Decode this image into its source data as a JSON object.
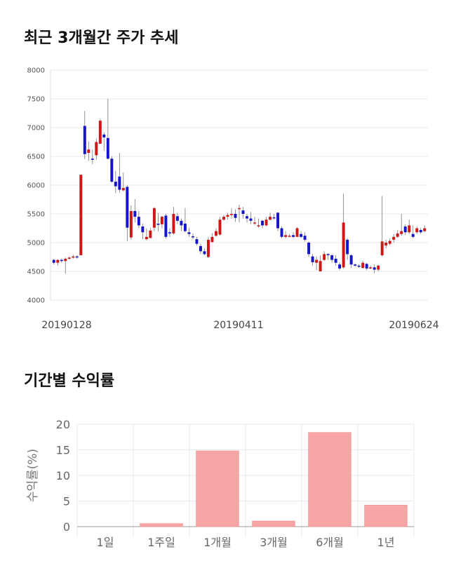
{
  "section_titles": {
    "price": "최근 3개월간 주가 추세",
    "returns": "기간별 수익률"
  },
  "colors": {
    "up": "#d01717",
    "down": "#1515c8",
    "bar": "#f8a5a5",
    "grid": "#e8e8ee"
  },
  "chart_data": [
    {
      "type": "candlestick",
      "ylim": [
        4000,
        8000
      ],
      "yticks": [
        "4000",
        "4500",
        "5000",
        "5500",
        "6000",
        "6500",
        "7000",
        "7500",
        "8000"
      ],
      "xticks": [
        "20190128",
        "20190411",
        "20190624"
      ],
      "grid": true,
      "candles": [
        [
          4700,
          4650,
          4720,
          4620
        ],
        [
          4650,
          4700,
          4710,
          4600
        ],
        [
          4700,
          4680,
          4720,
          4650
        ],
        [
          4680,
          4720,
          4740,
          4460
        ],
        [
          4720,
          4740,
          4760,
          4700
        ],
        [
          4740,
          4760,
          4790,
          4720
        ],
        [
          4760,
          4750,
          4780,
          4720
        ],
        [
          4780,
          6180,
          6180,
          4780
        ],
        [
          7030,
          6540,
          7290,
          6450
        ],
        [
          6560,
          6620,
          6760,
          6420
        ],
        [
          6460,
          6440,
          6620,
          6360
        ],
        [
          6520,
          6750,
          6810,
          6440
        ],
        [
          6720,
          7120,
          7150,
          6720
        ],
        [
          6880,
          6830,
          6920,
          6600
        ],
        [
          6820,
          6460,
          7500,
          6440
        ],
        [
          6460,
          6060,
          6500,
          6040
        ],
        [
          6060,
          5980,
          6250,
          5860
        ],
        [
          6150,
          5920,
          6560,
          5870
        ],
        [
          5910,
          5950,
          6220,
          5890
        ],
        [
          5970,
          5260,
          6000,
          5020
        ],
        [
          5090,
          5550,
          5650,
          5050
        ],
        [
          5550,
          5450,
          5760,
          5350
        ],
        [
          5450,
          5300,
          5550,
          5250
        ],
        [
          5280,
          5180,
          5330,
          5060
        ],
        [
          5060,
          5100,
          5250,
          5040
        ],
        [
          5080,
          5210,
          5260,
          5080
        ],
        [
          5260,
          5600,
          5620,
          5200
        ],
        [
          5330,
          5310,
          5520,
          5200
        ],
        [
          5320,
          5450,
          5470,
          5250
        ],
        [
          5470,
          5100,
          5500,
          5070
        ],
        [
          5180,
          5160,
          5250,
          5100
        ],
        [
          5160,
          5500,
          5620,
          5140
        ],
        [
          5460,
          5380,
          5520,
          5320
        ],
        [
          5380,
          5300,
          5420,
          5200
        ],
        [
          5330,
          5200,
          5600,
          5180
        ],
        [
          5180,
          5150,
          5260,
          5100
        ],
        [
          5110,
          5100,
          5160,
          5060
        ],
        [
          5060,
          4980,
          5100,
          4950
        ],
        [
          4940,
          4850,
          4980,
          4800
        ],
        [
          4850,
          4800,
          4900,
          4780
        ],
        [
          4750,
          5050,
          5100,
          4730
        ],
        [
          5010,
          5100,
          5160,
          5000
        ],
        [
          5120,
          5200,
          5250,
          5100
        ],
        [
          5140,
          5400,
          5450,
          5120
        ],
        [
          5400,
          5450,
          5480,
          5380
        ],
        [
          5450,
          5480,
          5520,
          5400
        ],
        [
          5480,
          5500,
          5600,
          5420
        ],
        [
          5500,
          5430,
          5580,
          5360
        ],
        [
          5600,
          5600,
          5660,
          5350
        ],
        [
          5560,
          5500,
          5620,
          5420
        ],
        [
          5460,
          5420,
          5500,
          5350
        ],
        [
          5420,
          5380,
          5530,
          5320
        ],
        [
          5350,
          5350,
          5450,
          5300
        ],
        [
          5300,
          5300,
          5420,
          5260
        ],
        [
          5380,
          5300,
          5400,
          5250
        ],
        [
          5300,
          5400,
          5450,
          5280
        ],
        [
          5400,
          5450,
          5520,
          5380
        ],
        [
          5440,
          5430,
          5500,
          5400
        ],
        [
          5520,
          5250,
          5530,
          5200
        ],
        [
          5250,
          5100,
          5280,
          5080
        ],
        [
          5100,
          5130,
          5200,
          5070
        ],
        [
          5110,
          5120,
          5150,
          5090
        ],
        [
          5130,
          5100,
          5180,
          5080
        ],
        [
          5100,
          5250,
          5270,
          5100
        ],
        [
          5150,
          5100,
          5200,
          5080
        ],
        [
          5120,
          5050,
          5180,
          5020
        ],
        [
          5000,
          4800,
          5020,
          4750
        ],
        [
          4760,
          4660,
          4800,
          4600
        ],
        [
          4650,
          4700,
          4760,
          4520
        ],
        [
          4500,
          4680,
          4780,
          4500
        ],
        [
          4700,
          4800,
          4850,
          4680
        ],
        [
          4800,
          4780,
          4820,
          4700
        ],
        [
          4780,
          4700,
          4800,
          4650
        ],
        [
          4720,
          4650,
          4780,
          4600
        ],
        [
          4620,
          4550,
          4660,
          4520
        ],
        [
          4570,
          5350,
          5850,
          4550
        ],
        [
          5050,
          4800,
          5080,
          4700
        ],
        [
          4780,
          4620,
          4800,
          4560
        ],
        [
          4620,
          4600,
          4640,
          4580
        ],
        [
          4600,
          4580,
          4620,
          4560
        ],
        [
          4560,
          4650,
          4680,
          4550
        ],
        [
          4630,
          4550,
          4650,
          4520
        ],
        [
          4550,
          4570,
          4600,
          4540
        ],
        [
          4570,
          4530,
          4620,
          4470
        ],
        [
          4530,
          4600,
          4620,
          4500
        ],
        [
          4780,
          5020,
          5810,
          4760
        ],
        [
          4950,
          5000,
          5050,
          4900
        ],
        [
          4980,
          5030,
          5070,
          4950
        ],
        [
          5050,
          5100,
          5150,
          5000
        ],
        [
          5100,
          5160,
          5220,
          5080
        ],
        [
          5150,
          5200,
          5500,
          5120
        ],
        [
          5280,
          5180,
          5320,
          5130
        ],
        [
          5180,
          5300,
          5400,
          5150
        ],
        [
          5150,
          5100,
          5300,
          5080
        ],
        [
          5180,
          5250,
          5280,
          5150
        ],
        [
          5220,
          5180,
          5260,
          5150
        ],
        [
          5200,
          5250,
          5300,
          5180
        ]
      ]
    },
    {
      "type": "bar",
      "categories": [
        "1일",
        "1주일",
        "1개월",
        "3개월",
        "6개월",
        "1년"
      ],
      "values": [
        0,
        0.6,
        14.8,
        1.1,
        18.4,
        4.2
      ],
      "ylabel": "수익률(%)",
      "ylim": [
        0,
        20
      ],
      "yticks": [
        "0",
        "5",
        "10",
        "15",
        "20"
      ],
      "grid": true
    }
  ]
}
